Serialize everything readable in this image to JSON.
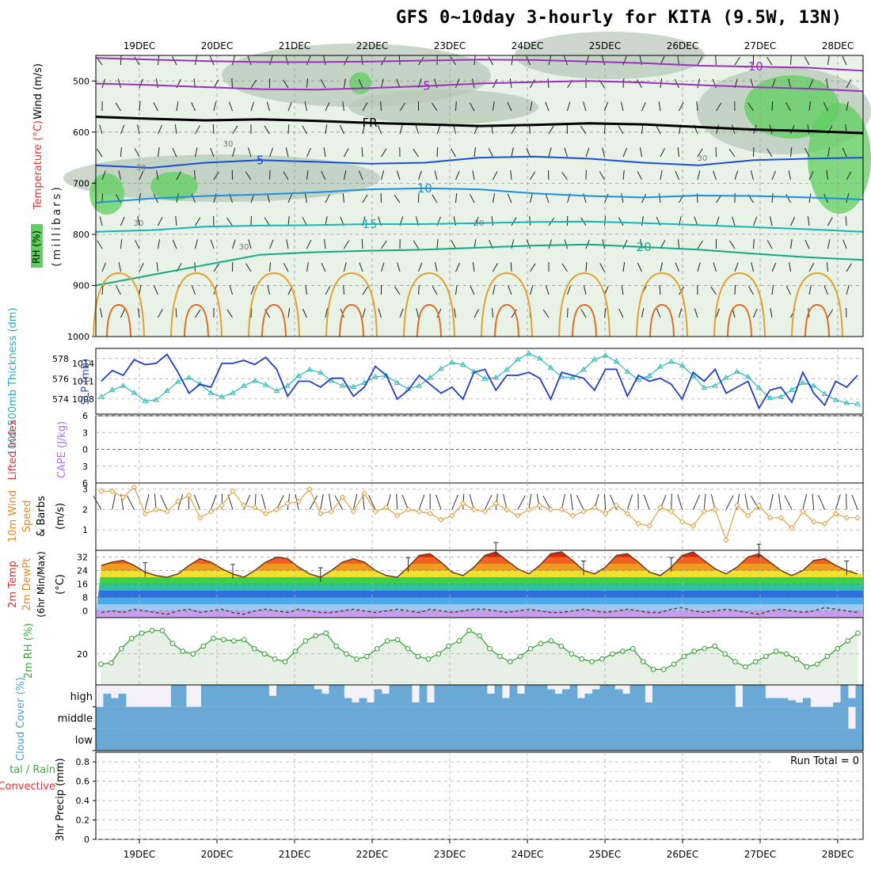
{
  "title": "GFS 0~10day 3-hourly for KITA (9.5W, 13N)",
  "chart_data": [
    {
      "type": "area",
      "name": "upper-air cross section",
      "xaxis_dates": [
        "19DEC",
        "20DEC",
        "21DEC",
        "22DEC",
        "23DEC",
        "24DEC",
        "25DEC",
        "26DEC",
        "27DEC",
        "28DEC"
      ],
      "ylabel": "(millibars)",
      "ylabel_parts": [
        "Wind (m/s)",
        "Temperature (°C)",
        "RH (%)"
      ],
      "y_ticks": [
        "500",
        "600",
        "700",
        "800",
        "900",
        "1000"
      ],
      "ylim": [
        450,
        1000
      ],
      "isotherm_labels": [
        "-10",
        "-5",
        "FR",
        "5",
        "10",
        "15",
        "20"
      ],
      "isotherms": [
        {
          "label": "-10",
          "p": [
            455,
            458,
            461,
            463,
            463,
            462,
            460,
            458,
            459,
            462,
            465,
            470,
            472,
            474,
            480
          ]
        },
        {
          "label": "-5",
          "p": [
            505,
            508,
            512,
            516,
            517,
            514,
            510,
            505,
            502,
            500,
            503,
            508,
            512,
            515,
            520
          ]
        },
        {
          "label": "FR",
          "p": [
            570,
            574,
            577,
            575,
            578,
            582,
            585,
            588,
            586,
            583,
            585,
            590,
            595,
            598,
            602
          ]
        },
        {
          "label": "5",
          "p": [
            665,
            670,
            660,
            655,
            658,
            662,
            660,
            650,
            648,
            652,
            660,
            665,
            655,
            652,
            650
          ]
        },
        {
          "label": "10",
          "p": [
            738,
            730,
            725,
            722,
            718,
            712,
            710,
            712,
            720,
            725,
            728,
            724,
            725,
            728,
            732
          ]
        },
        {
          "label": "15",
          "p": [
            795,
            792,
            785,
            783,
            782,
            780,
            780,
            778,
            776,
            775,
            778,
            782,
            786,
            790,
            795
          ]
        },
        {
          "label": "20",
          "p": [
            900,
            880,
            860,
            840,
            835,
            832,
            830,
            826,
            822,
            820,
            825,
            830,
            838,
            845,
            850
          ]
        }
      ],
      "rh_labels": [
        "30",
        "30",
        "30",
        "30",
        "30",
        "30"
      ]
    },
    {
      "type": "line",
      "name": "thickness and sea level pressure",
      "ylabel": "1000-500mb Thickness (dm)",
      "ylabel2": "SLP (mb)",
      "y_ticks": [
        "578",
        "576",
        "574"
      ],
      "y2_ticks": [
        "1014",
        "1011",
        "1008"
      ],
      "series": [
        {
          "name": "Thickness",
          "unit": "dm",
          "values": [
            574.2,
            574.9,
            575.3,
            574.6,
            573.8,
            573.9,
            574.8,
            575.7,
            576.1,
            575.5,
            574.6,
            574.2,
            574.6,
            575.3,
            575.8,
            575.4,
            574.8,
            575.3,
            576.3,
            576.9,
            576.6,
            575.8,
            575.3,
            575.2,
            575.6,
            576.2,
            576.3,
            575.6,
            575.0,
            575.3,
            576.1,
            577.0,
            577.6,
            577.4,
            576.7,
            576.0,
            576.1,
            576.9,
            577.9,
            578.5,
            578.0,
            577.1,
            576.2,
            576.1,
            576.9,
            577.9,
            578.3,
            577.7,
            576.7,
            575.9,
            576.3,
            577.2,
            577.7,
            577.3,
            576.3,
            575.1,
            575.3,
            576.1,
            576.7,
            576.2,
            575.1,
            574.1,
            574.2,
            574.9,
            575.6,
            575.3,
            574.5,
            573.9,
            573.6,
            573.5
          ]
        },
        {
          "name": "SLP",
          "unit": "mb",
          "values": [
            1011.0,
            1012.8,
            1012.0,
            1014.6,
            1013.8,
            1014.0,
            1015.5,
            1012.5,
            1009.0,
            1010.5,
            1010.0,
            1014.0,
            1014.0,
            1014.5,
            1013.8,
            1015.0,
            1013.0,
            1008.5,
            1011.0,
            1011.0,
            1010.0,
            1011.5,
            1011.5,
            1008.5,
            1010.0,
            1013.5,
            1012.0,
            1008.0,
            1009.5,
            1012.0,
            1010.5,
            1009.0,
            1010.0,
            1008.0,
            1012.5,
            1013.0,
            1009.5,
            1012.0,
            1012.0,
            1012.5,
            1011.5,
            1008.0,
            1012.5,
            1012.0,
            1011.5,
            1009.5,
            1013.0,
            1013.0,
            1008.5,
            1012.0,
            1011.0,
            1011.5,
            1010.5,
            1008.0,
            1012.5,
            1011.0,
            1013.0,
            1009.0,
            1010.0,
            1011.0,
            1006.5,
            1009.5,
            1010.0,
            1007.5,
            1012.5,
            1009.0,
            1007.0,
            1011.0,
            1010.0,
            1012.0
          ]
        }
      ]
    },
    {
      "type": "line",
      "name": "stability",
      "ylabel": "Lifted Index",
      "ylabel2": "CAPE (J/kg)",
      "y_ticks": [
        "6",
        "3",
        "0",
        "3",
        "6"
      ],
      "series": [
        {
          "name": "Lifted Index",
          "values": []
        },
        {
          "name": "CAPE",
          "values": []
        }
      ]
    },
    {
      "type": "line",
      "name": "10m wind",
      "ylabel": "10m Wind Speed & Barbs (m/s)",
      "ylabel_parts": [
        "10m Wind",
        "Speed",
        "& Barbs",
        "(m/s)"
      ],
      "y_ticks": [
        "3",
        "2",
        "1"
      ],
      "ylim": [
        0,
        3.3
      ],
      "series": [
        {
          "name": "10m Wind Speed",
          "unit": "m/s",
          "values": [
            2.9,
            2.9,
            2.6,
            3.1,
            1.8,
            2.0,
            1.9,
            2.4,
            2.7,
            1.6,
            1.9,
            2.2,
            2.9,
            2.2,
            2.1,
            1.8,
            2.0,
            2.3,
            2.4,
            3.0,
            1.8,
            1.9,
            2.6,
            1.9,
            2.8,
            1.9,
            2.1,
            1.7,
            2.0,
            1.9,
            1.8,
            1.5,
            1.7,
            2.3,
            2.0,
            1.9,
            2.3,
            2.0,
            1.7,
            2.0,
            2.2,
            2.0,
            2.0,
            1.7,
            1.9,
            2.1,
            1.8,
            2.2,
            1.8,
            1.3,
            1.2,
            2.1,
            1.9,
            1.4,
            1.2,
            1.9,
            2.0,
            0.5,
            2.2,
            1.7,
            2.2,
            1.6,
            1.6,
            1.1,
            1.9,
            1.4,
            1.3,
            1.8,
            1.6,
            1.6
          ]
        }
      ]
    },
    {
      "type": "area",
      "name": "2m temperature",
      "ylabel": "2m Temp 2m DewPt (6hr Min/Max) (°C)",
      "ylabel_parts": [
        "2m Temp",
        "2m DewPt",
        "(6hr Min/Max)",
        "(°C)"
      ],
      "y_ticks": [
        "32",
        "24",
        "16",
        "8",
        "0"
      ],
      "ylim": [
        -4,
        36
      ],
      "series": [
        {
          "name": "2m Temp",
          "unit": "°C",
          "values": [
            27,
            29,
            30,
            27,
            23,
            21,
            20,
            22,
            27,
            31,
            29,
            25,
            22,
            20,
            24,
            29,
            32,
            31,
            26,
            22,
            20,
            24,
            29,
            31,
            29,
            24,
            21,
            20,
            26,
            33,
            34,
            29,
            23,
            21,
            26,
            33,
            35,
            30,
            25,
            22,
            27,
            34,
            35,
            30,
            24,
            22,
            26,
            33,
            34,
            29,
            23,
            21,
            26,
            33,
            35,
            30,
            25,
            22,
            26,
            32,
            34,
            29,
            24,
            21,
            24,
            30,
            31,
            27,
            24,
            22
          ]
        },
        {
          "name": "2m DewPt",
          "unit": "°C",
          "values": [
            -1,
            0,
            -1,
            1,
            0,
            -1,
            -2,
            0,
            1,
            -1,
            0,
            1,
            -1,
            -2,
            0,
            1,
            0,
            -1,
            1,
            0,
            -1,
            -1,
            0,
            1,
            0,
            -1,
            0,
            1,
            0,
            -1,
            1,
            0,
            -1,
            0,
            1,
            1,
            0,
            -1,
            0,
            1,
            0,
            -1,
            -1,
            0,
            1,
            0,
            -1,
            0,
            1,
            0,
            -1,
            -1,
            1,
            2,
            0,
            -1,
            0,
            1,
            0,
            -1,
            -2,
            0,
            1,
            0,
            -1,
            0,
            2,
            1,
            0,
            -1
          ]
        }
      ]
    },
    {
      "type": "line",
      "name": "2m relative humidity",
      "ylabel": "2m RH (%)",
      "y_ticks": [
        "20"
      ],
      "ylim": [
        8,
        34
      ],
      "series": [
        {
          "name": "2m RH",
          "unit": "%",
          "values": [
            16,
            16.5,
            22,
            26,
            28,
            29,
            29,
            24,
            21,
            20,
            23,
            26,
            25.5,
            25,
            25.5,
            22,
            20,
            18,
            17,
            21,
            25,
            27,
            28,
            23,
            20,
            18,
            19,
            22,
            25,
            25.5,
            22,
            19,
            18,
            20,
            23,
            25,
            29,
            27,
            22,
            19,
            17,
            19,
            22,
            24,
            25,
            23,
            20,
            18,
            17,
            18,
            20,
            21,
            22,
            17,
            14,
            14,
            16,
            19,
            21,
            22,
            23,
            20,
            17,
            15,
            17,
            19,
            21,
            20,
            18,
            15,
            16,
            19,
            22,
            25,
            28
          ]
        }
      ]
    },
    {
      "type": "heatmap",
      "name": "cloud cover",
      "ylabel": "Cloud Cover (%)",
      "row_labels": [
        "high",
        "middle",
        "low"
      ],
      "series": [
        {
          "name": "high",
          "unit": "%",
          "values": [
            0,
            60,
            40,
            60,
            0,
            0,
            0,
            0,
            0,
            0,
            100,
            100,
            0,
            0,
            100,
            100,
            100,
            100,
            100,
            100,
            100,
            100,
            100,
            50,
            100,
            100,
            100,
            100,
            100,
            80,
            60,
            100,
            100,
            40,
            20,
            40,
            20,
            80,
            60,
            100,
            100,
            100,
            20,
            100,
            20,
            100,
            100,
            100,
            100,
            100,
            100,
            100,
            60,
            100,
            40,
            100,
            60,
            100,
            100,
            100,
            80,
            60,
            80,
            100,
            40,
            60,
            80,
            100,
            100,
            80,
            60,
            100,
            100,
            20,
            100,
            100,
            100,
            100,
            100,
            100,
            100,
            100,
            100,
            100,
            100,
            0,
            100,
            100,
            100,
            40,
            40,
            40,
            30,
            20,
            40,
            0,
            0,
            0,
            20,
            100,
            40,
            100
          ]
        },
        {
          "name": "middle",
          "unit": "%",
          "values": [
            100,
            100,
            100,
            100,
            100,
            100,
            100,
            100,
            100,
            100,
            100,
            100,
            100,
            100,
            100,
            100,
            100,
            100,
            100,
            100,
            100,
            100,
            100,
            100,
            100,
            100,
            100,
            100,
            100,
            100,
            100,
            100,
            100,
            100,
            100,
            100,
            100,
            100,
            100,
            100,
            100,
            100,
            100,
            100,
            100,
            100,
            100,
            100,
            100,
            100,
            100,
            100,
            100,
            100,
            100,
            100,
            100,
            100,
            100,
            100,
            100,
            100,
            100,
            100,
            100,
            100,
            100,
            100,
            100,
            100,
            100,
            100,
            100,
            100,
            100,
            100,
            100,
            100,
            100,
            100,
            100,
            100,
            100,
            100,
            100,
            100,
            100,
            100,
            100,
            100,
            100,
            100,
            100,
            100,
            100,
            100,
            100,
            100,
            100,
            100,
            0,
            100
          ]
        },
        {
          "name": "low",
          "unit": "%",
          "values": [
            100,
            100,
            100,
            100,
            100,
            100,
            100,
            100,
            100,
            100,
            100,
            100,
            100,
            100,
            100,
            100,
            100,
            100,
            100,
            100,
            100,
            100,
            100,
            100,
            100,
            100,
            100,
            100,
            100,
            100,
            100,
            100,
            100,
            100,
            100,
            100,
            100,
            100,
            100,
            100,
            100,
            100,
            100,
            100,
            100,
            100,
            100,
            100,
            100,
            100,
            100,
            100,
            100,
            100,
            100,
            100,
            100,
            100,
            100,
            100,
            100,
            100,
            100,
            100,
            100,
            100,
            100,
            100,
            100,
            100,
            100,
            100,
            100,
            100,
            100,
            100,
            100,
            100,
            100,
            100,
            100,
            100,
            100,
            100,
            100,
            100,
            100,
            100,
            100,
            100,
            100,
            100,
            100,
            100,
            100,
            100,
            100,
            100,
            100,
            100,
            100,
            100
          ]
        }
      ]
    },
    {
      "type": "bar",
      "name": "precipitation",
      "ylabel": "3hr Precip (mm)",
      "ylabel2": "Total / Rain Convective",
      "ylabel2_parts": [
        "tal / Rain",
        "Convective"
      ],
      "run_total": "Run Total = 0",
      "y_ticks": [
        "0.8",
        "0.6",
        "0.4",
        "0.2",
        "0"
      ],
      "ylim": [
        0,
        0.9
      ],
      "series": [
        {
          "name": "Total",
          "unit": "mm",
          "values": []
        },
        {
          "name": "Convective",
          "unit": "mm",
          "values": []
        }
      ]
    }
  ],
  "colors": {
    "isotherm_cold": "#9b2fc0",
    "isotherm_fr": "#000000",
    "isotherm_5": "#1c4fd6",
    "isotherm_10": "#1e8fe0",
    "isotherm_15": "#17b5b5",
    "isotherm_20": "#16a883",
    "rh_light": "#e8f2e6",
    "rh_mid": "#b8c9b8",
    "rh_green": "#5fcf5f",
    "thickness": "#30b8b8",
    "slp": "#1f3fc8",
    "zero_line": "#e04040",
    "wind": "#e0a040",
    "rh2m": "#2f9a2f",
    "cloud": "#6aa8d6",
    "cloud_bg": "#f4f2f8",
    "label_red": "#e03030",
    "label_orange": "#e08a20",
    "label_green": "#30b030",
    "label_purple": "#b070e0",
    "label_teal": "#20b0c0",
    "label_cloud": "#4aa0d0"
  }
}
